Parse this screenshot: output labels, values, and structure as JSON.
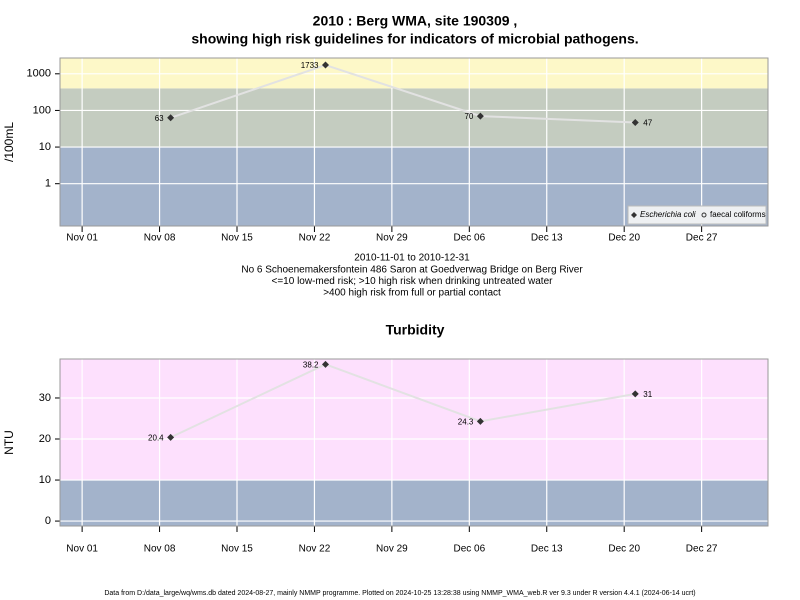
{
  "chart_data": [
    {
      "type": "line",
      "title": [
        "2010 : Berg WMA, site 190309 ,",
        "showing high risk guidelines for indicators of microbial pathogens."
      ],
      "ylabel": "/100mL",
      "log_y": true,
      "x": [
        "Nov 09",
        "Nov 23",
        "Dec 07",
        "Dec 21"
      ],
      "xlim": [
        "Oct 30",
        "Jan 02"
      ],
      "xticks": [
        "Nov 01",
        "Nov 08",
        "Nov 15",
        "Nov 22",
        "Nov 29",
        "Dec 06",
        "Dec 13",
        "Dec 20",
        "Dec 27"
      ],
      "ylim": [
        0.07,
        2700
      ],
      "yticks": [
        1,
        10,
        100,
        1000
      ],
      "thresholds": [
        10,
        400
      ],
      "band_colors": [
        "#a3b3cb",
        "#c4ccc0",
        "#fdf8c8"
      ],
      "grid": true,
      "line_color": "#e2e2e2",
      "series": [
        {
          "name": "Escherichia coli",
          "color": "#333333",
          "marker": "diamond",
          "values": [
            63,
            1733,
            70,
            47
          ]
        },
        {
          "name": "faecal coliforms",
          "color": "#333333",
          "marker": "circle",
          "values": [
            null,
            null,
            null,
            null
          ]
        }
      ],
      "legend": "bottom-right",
      "notes": [
        "2010-11-01 to 2010-12-31",
        "No 6 Schoenemakersfontein 486 Saron at Goedverwag Bridge on Berg River",
        "<=10 low-med risk; >10 high risk when drinking untreated water",
        ">400 high risk from full or partial contact"
      ]
    },
    {
      "type": "line",
      "title": [
        "Turbidity"
      ],
      "ylabel": "NTU",
      "log_y": false,
      "x": [
        "Nov 09",
        "Nov 23",
        "Dec 07",
        "Dec 21"
      ],
      "xlim": [
        "Oct 30",
        "Jan 02"
      ],
      "xticks": [
        "Nov 01",
        "Nov 08",
        "Nov 15",
        "Nov 22",
        "Nov 29",
        "Dec 06",
        "Dec 13",
        "Dec 20",
        "Dec 27"
      ],
      "ylim": [
        -1.2,
        39.5
      ],
      "yticks": [
        0,
        10,
        20,
        30
      ],
      "thresholds": [
        10
      ],
      "band_colors": [
        "#a3b3cb",
        "#fde0fd"
      ],
      "grid": true,
      "line_color": "#e2e2e2",
      "series": [
        {
          "name": "Turbidity",
          "color": "#333333",
          "marker": "diamond",
          "values": [
            20.4,
            38.2,
            24.3,
            31
          ]
        }
      ]
    }
  ],
  "footer": "Data from D:/data_large/wq/wms.db dated 2024-08-27, mainly NMMP programme. Plotted on 2024-10-25 13:28:38 using NMMP_WMA_web.R ver 9.3 under R version 4.4.1 (2024-06-14 ucrt)"
}
